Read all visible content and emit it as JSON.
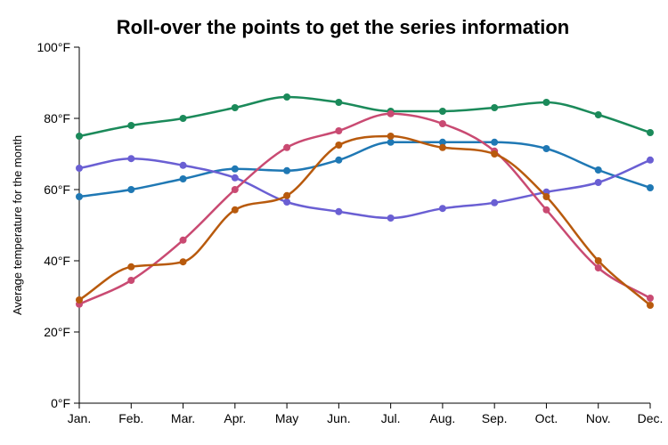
{
  "chart_data": {
    "type": "line",
    "title": "Roll-over the points to get the series information",
    "ylabel": "Average temperature for the month",
    "xlabel": "",
    "categories": [
      "Jan.",
      "Feb.",
      "Mar.",
      "Apr.",
      "May",
      "Jun.",
      "Jul.",
      "Aug.",
      "Sep.",
      "Oct.",
      "Nov.",
      "Dec."
    ],
    "ylim": [
      0,
      100
    ],
    "y_ticks": [
      0,
      20,
      40,
      60,
      80,
      100
    ],
    "y_tick_labels": [
      "0°F",
      "20°F",
      "40°F",
      "60°F",
      "80°F",
      "100°F"
    ],
    "grid": false,
    "smooth": true,
    "series": [
      {
        "color": "#1b8a5a",
        "values": [
          75,
          78,
          80,
          83,
          86,
          84.5,
          82,
          82,
          83,
          84.5,
          81,
          76
        ]
      },
      {
        "color": "#1f78b4",
        "values": [
          58,
          60,
          63,
          65.8,
          65.3,
          68.3,
          73.3,
          73.3,
          73.3,
          71.5,
          65.5,
          60.5
        ]
      },
      {
        "color": "#6a5fd3",
        "values": [
          66,
          68.7,
          66.8,
          63.3,
          56.5,
          53.8,
          52,
          54.7,
          56.3,
          59.3,
          62,
          68.3
        ]
      },
      {
        "color": "#c94a72",
        "values": [
          27.8,
          34.5,
          45.8,
          60,
          71.8,
          76.5,
          81.3,
          78.5,
          70.8,
          54.3,
          38,
          29.5
        ]
      },
      {
        "color": "#b85a0d",
        "values": [
          29,
          38.3,
          39.7,
          54.3,
          58.3,
          72.5,
          75,
          71.8,
          70,
          58,
          40,
          27.5
        ]
      }
    ]
  }
}
